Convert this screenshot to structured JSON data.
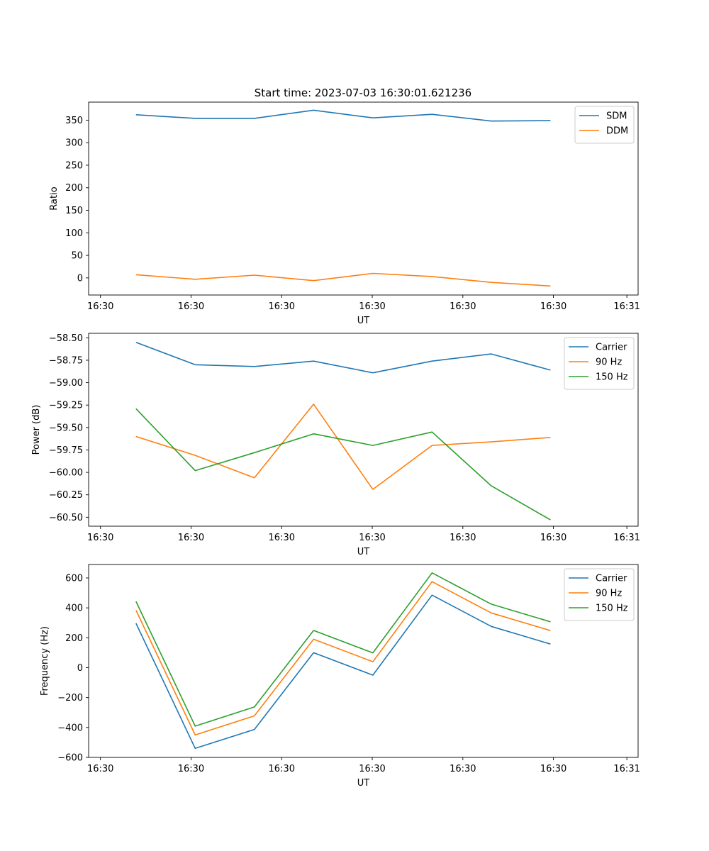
{
  "figure_title": "Start time: 2023-07-03 16:30:01.621236",
  "chart_data": [
    {
      "type": "line",
      "xlabel": "UT",
      "ylabel": "Ratio",
      "xticklabels": [
        "16:30",
        "16:30",
        "16:30",
        "16:30",
        "16:30",
        "16:30",
        "16:31"
      ],
      "x_index": [
        1,
        2,
        3,
        4,
        5,
        6,
        7,
        8
      ],
      "xlim": [
        0.2,
        9.48
      ],
      "ylim": [
        -38,
        390
      ],
      "yticks": [
        0,
        50,
        100,
        150,
        200,
        250,
        300,
        350
      ],
      "yticklabels": [
        "0",
        "50",
        "100",
        "150",
        "200",
        "250",
        "300",
        "350"
      ],
      "legend": "top-right",
      "series": [
        {
          "name": "SDM",
          "color": "#1f77b4",
          "values": [
            362,
            354,
            354,
            372,
            355,
            363,
            348,
            349
          ]
        },
        {
          "name": "DDM",
          "color": "#ff7f0e",
          "values": [
            7,
            -3,
            6,
            -6,
            10,
            3,
            -10,
            -18
          ]
        }
      ]
    },
    {
      "type": "line",
      "xlabel": "UT",
      "ylabel": "Power (dB)",
      "xticklabels": [
        "16:30",
        "16:30",
        "16:30",
        "16:30",
        "16:30",
        "16:30",
        "16:31"
      ],
      "x_index": [
        1,
        2,
        3,
        4,
        5,
        6,
        7,
        8
      ],
      "xlim": [
        0.2,
        9.48
      ],
      "ylim": [
        -60.6,
        -58.45
      ],
      "yticks": [
        -58.5,
        -58.75,
        -59.0,
        -59.25,
        -59.5,
        -59.75,
        -60.0,
        -60.25,
        -60.5
      ],
      "yticklabels": [
        "−58.50",
        "−58.75",
        "−59.00",
        "−59.25",
        "−59.50",
        "−59.75",
        "−60.00",
        "−60.25",
        "−60.50"
      ],
      "legend": "top-right",
      "series": [
        {
          "name": "Carrier",
          "color": "#1f77b4",
          "values": [
            -58.55,
            -58.8,
            -58.82,
            -58.76,
            -58.89,
            -58.76,
            -58.68,
            -58.86
          ]
        },
        {
          "name": "90 Hz",
          "color": "#ff7f0e",
          "values": [
            -59.6,
            -59.81,
            -60.06,
            -59.24,
            -60.19,
            -59.7,
            -59.66,
            -59.61
          ]
        },
        {
          "name": "150 Hz",
          "color": "#2ca02c",
          "values": [
            -59.29,
            -59.98,
            -59.78,
            -59.57,
            -59.7,
            -59.55,
            -60.15,
            -60.53
          ]
        }
      ]
    },
    {
      "type": "line",
      "xlabel": "UT",
      "ylabel": "Frequency (Hz)",
      "xticklabels": [
        "16:30",
        "16:30",
        "16:30",
        "16:30",
        "16:30",
        "16:30",
        "16:31"
      ],
      "x_index": [
        1,
        2,
        3,
        4,
        5,
        6,
        7,
        8
      ],
      "xlim": [
        0.2,
        9.48
      ],
      "ylim": [
        -600,
        690
      ],
      "yticks": [
        -600,
        -400,
        -200,
        0,
        200,
        400,
        600
      ],
      "yticklabels": [
        "−600",
        "−400",
        "−200",
        "0",
        "200",
        "400",
        "600"
      ],
      "legend": "top-right",
      "series": [
        {
          "name": "Carrier",
          "color": "#1f77b4",
          "values": [
            297,
            -540,
            -413,
            100,
            -50,
            485,
            276,
            158
          ]
        },
        {
          "name": "90 Hz",
          "color": "#ff7f0e",
          "values": [
            384,
            -450,
            -322,
            190,
            40,
            575,
            366,
            248
          ]
        },
        {
          "name": "150 Hz",
          "color": "#2ca02c",
          "values": [
            443,
            -391,
            -263,
            249,
            99,
            634,
            425,
            307
          ]
        }
      ]
    }
  ]
}
